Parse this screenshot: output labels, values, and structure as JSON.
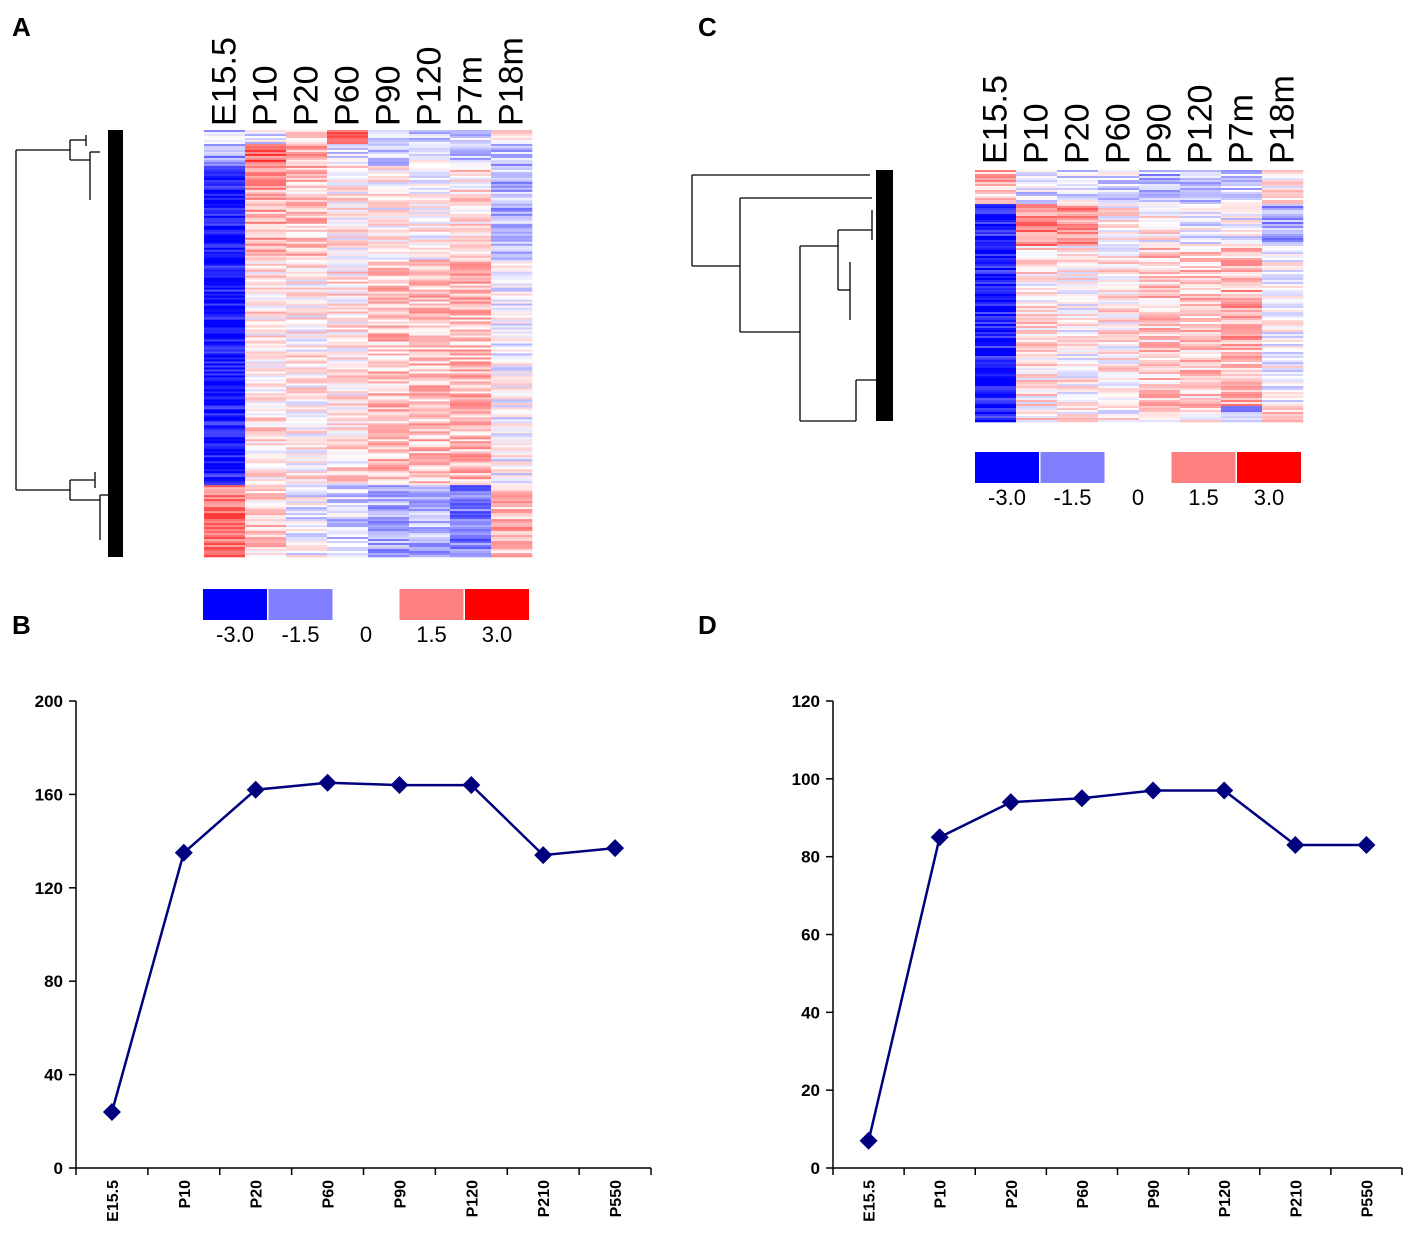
{
  "panels": {
    "A": "A",
    "B": "B",
    "C": "C",
    "D": "D"
  },
  "heatmap_columns": [
    "E15.5",
    "P10",
    "P20",
    "P60",
    "P90",
    "P120",
    "P7m",
    "P18m"
  ],
  "legend": {
    "labels": [
      "-3.0",
      "-1.5",
      "0",
      "1.5",
      "3.0"
    ],
    "colors": [
      "#0000ff",
      "#8080ff",
      "#ffffff",
      "#ff8080",
      "#ff0000"
    ]
  },
  "colors": {
    "series": "#00007f",
    "axis": "#000000"
  },
  "chart_data": [
    {
      "panel": "A",
      "type": "heatmap",
      "columns": [
        "E15.5",
        "P10",
        "P20",
        "P60",
        "P90",
        "P120",
        "P7m",
        "P18m"
      ],
      "scale": [
        -3.0,
        3.0
      ]
    },
    {
      "panel": "B",
      "type": "line",
      "categories": [
        "E15.5",
        "P10",
        "P20",
        "P60",
        "P90",
        "P120",
        "P210",
        "P550"
      ],
      "values": [
        24,
        135,
        162,
        165,
        164,
        164,
        134,
        137
      ],
      "ylim": [
        0,
        200
      ],
      "yticks": [
        "0",
        "40",
        "80",
        "120",
        "160",
        "200"
      ],
      "title": "",
      "xlabel": "",
      "ylabel": ""
    },
    {
      "panel": "C",
      "type": "heatmap",
      "columns": [
        "E15.5",
        "P10",
        "P20",
        "P60",
        "P90",
        "P120",
        "P7m",
        "P18m"
      ],
      "scale": [
        -3.0,
        3.0
      ]
    },
    {
      "panel": "D",
      "type": "line",
      "categories": [
        "E15.5",
        "P10",
        "P20",
        "P60",
        "P90",
        "P120",
        "P210",
        "P550"
      ],
      "values": [
        7,
        85,
        94,
        95,
        97,
        97,
        83,
        83
      ],
      "ylim": [
        0,
        120
      ],
      "yticks": [
        "0",
        "20",
        "40",
        "60",
        "80",
        "100",
        "120"
      ],
      "title": "",
      "xlabel": "",
      "ylabel": ""
    }
  ]
}
